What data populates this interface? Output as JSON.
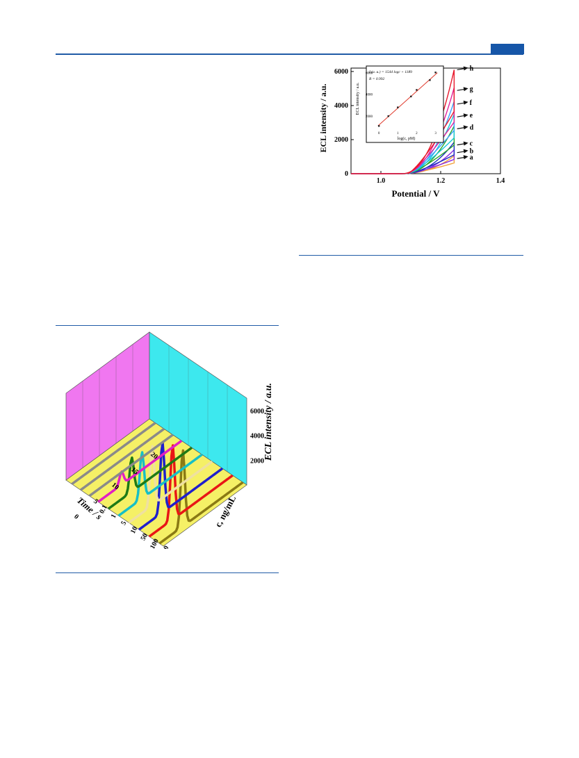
{
  "page": {
    "accent": "#1f5aa6"
  },
  "figure_cv": {
    "chart_data": {
      "type": "line",
      "xlabel": "Potential / V",
      "ylabel": "ECL intensity / a.u.",
      "xlim": [
        0.9,
        1.4
      ],
      "ylim": [
        0,
        6200
      ],
      "xticks": [
        "1.0",
        "1.2",
        "1.4"
      ],
      "yticks": [
        "0",
        "2000",
        "4000",
        "6000"
      ],
      "series": [
        {
          "name": "a",
          "color": "#f2a23a",
          "peak": 1050
        },
        {
          "name": "b",
          "color": "#8a2be2",
          "peak": 1400
        },
        {
          "name": "c",
          "color": "#1e2fbf",
          "peak": 1850
        },
        {
          "name": "d",
          "color": "#2aa52a",
          "peak": 2800
        },
        {
          "name": "e",
          "color": "#15c8d8",
          "peak": 3500
        },
        {
          "name": "f",
          "color": "#3ea0ff",
          "peak": 4250
        },
        {
          "name": "g",
          "color": "#e2229b",
          "peak": 5050
        },
        {
          "name": "h",
          "color": "#e8192d",
          "peak": 6100
        }
      ],
      "inset": {
        "type": "scatter",
        "xlabel": "log(c, pM)",
        "ylabel": "ECL intensity / a.u.",
        "equation": "I (a. u.) = 1544 logc + 1189",
        "r_value": "R = 0.992",
        "xlim": [
          -0.3,
          3.2
        ],
        "ylim": [
          800,
          6400
        ],
        "xticks": [
          "0",
          "1",
          "2",
          "3"
        ],
        "yticks": [
          "2000",
          "4000",
          "6000"
        ],
        "x": [
          0,
          0.5,
          1,
          1.7,
          2.0,
          2.7,
          3.0
        ],
        "y": [
          1100,
          2000,
          2800,
          3800,
          4400,
          5300,
          6000
        ],
        "fit": {
          "slope": 1544,
          "intercept": 1189
        }
      }
    }
  },
  "figure_3d": {
    "chart_data": {
      "type": "line",
      "zlabel": "ECL intensity / a.u.",
      "time_label": "Time / s",
      "conc_label": "c, ng/mL",
      "zticks": [
        "2000",
        "4000",
        "6000"
      ],
      "zlim": [
        0,
        7000
      ],
      "time_ticks": [
        "0",
        "5",
        "10",
        "15",
        "20"
      ],
      "conc_ticks": [
        "0.1",
        "1",
        "5",
        "10",
        "50",
        "100",
        "500"
      ],
      "series": [
        {
          "name": "0.1",
          "color": "#e11fc3",
          "peak": 1050
        },
        {
          "name": "1",
          "color": "#1e7a16",
          "peak": 2750
        },
        {
          "name": "5",
          "color": "#17bfc6",
          "peak": 3750
        },
        {
          "name": "10",
          "color": "#efe0a0",
          "peak": 4800
        },
        {
          "name": "50",
          "color": "#1f1fcc",
          "peak": 5650
        },
        {
          "name": "100",
          "color": "#e81616",
          "peak": 6000
        },
        {
          "name": "500",
          "color": "#8a7a14",
          "peak": 6150
        }
      ],
      "baselines_extra": [
        {
          "color": "#8a8a8a"
        },
        {
          "color": "#8a8a8a"
        },
        {
          "color": "#8a8a8a"
        }
      ],
      "walls": {
        "left": "#f077f0",
        "right": "#3de8ee",
        "floor": "#f5f066"
      }
    }
  }
}
